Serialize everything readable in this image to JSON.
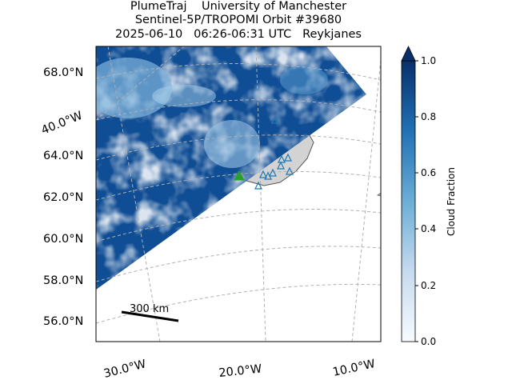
{
  "title": {
    "line1": "PlumeTraj    University of Manchester",
    "line2": "Sentinel-5P/TROPOMI Orbit #39680",
    "line3": "2025-06-10   06:26-06:31 UTC   Reykjanes"
  },
  "map": {
    "lat_labels": [
      "68.0°N",
      "64.0°N",
      "62.0°N",
      "60.0°N",
      "58.0°N",
      "56.0°N"
    ],
    "lon_labels": [
      "40.0°W",
      "30.0°W",
      "20.0°W",
      "10.0°W"
    ],
    "scale_bar_label": "300 km",
    "volcano_marker": "green-triangle",
    "station_marker": "blue-open-triangle",
    "colors": {
      "land": "#d3d3d3",
      "volcano": "#2ca02c",
      "stations": "#1f77b4",
      "grid": "#b0b0b0"
    }
  },
  "colorbar": {
    "label": "Cloud Fraction",
    "ticks": [
      "0.0",
      "0.2",
      "0.4",
      "0.6",
      "0.8",
      "1.0"
    ],
    "colormap": "Blues",
    "extend": "max"
  }
}
